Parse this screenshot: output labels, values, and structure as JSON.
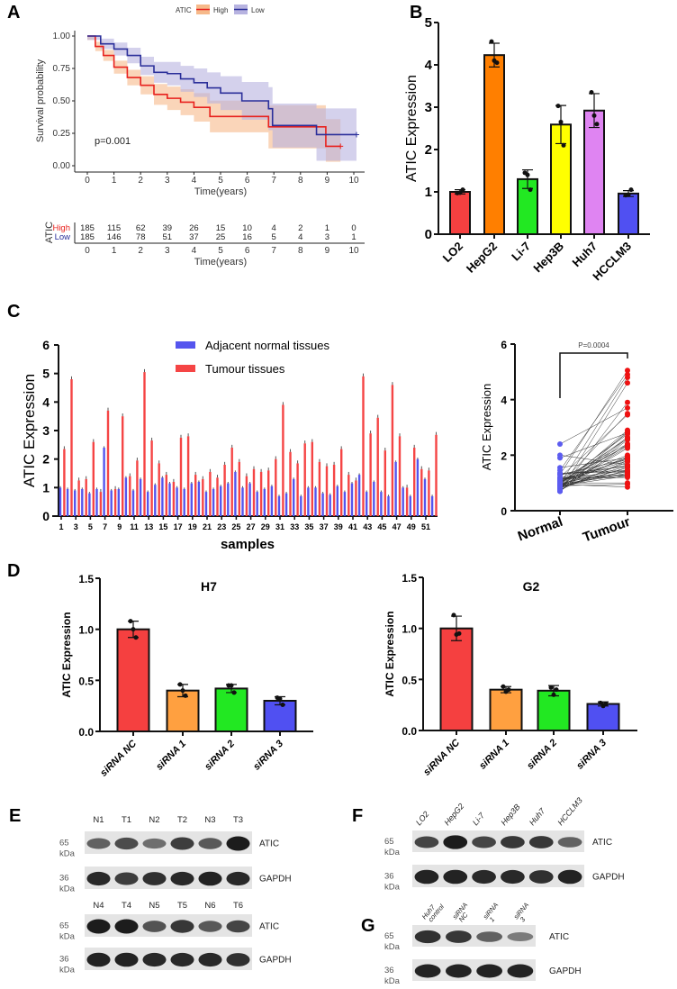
{
  "panel_labels": [
    "A",
    "B",
    "C",
    "D",
    "E",
    "F",
    "G"
  ],
  "chart_data": [
    {
      "id": "A",
      "type": "line",
      "title": "",
      "xlabel": "Time(years)",
      "ylabel": "Survival probability",
      "xlim": [
        0,
        10
      ],
      "ylim": [
        0,
        1
      ],
      "xticks": [
        0,
        1,
        2,
        3,
        4,
        5,
        6,
        7,
        8,
        9,
        10
      ],
      "yticks": [
        "0.00",
        "0.25",
        "0.50",
        "0.75",
        "1.00"
      ],
      "legend_title": "ATIC",
      "legend_position": "top",
      "annotation": "p=0.001",
      "series": [
        {
          "name": "High",
          "color": "#e8211d",
          "band": "#f6b98a",
          "steps": [
            [
              0,
              1
            ],
            [
              0.3,
              0.92
            ],
            [
              0.6,
              0.85
            ],
            [
              1,
              0.76
            ],
            [
              1.5,
              0.68
            ],
            [
              2,
              0.62
            ],
            [
              2.5,
              0.55
            ],
            [
              3,
              0.52
            ],
            [
              3.5,
              0.49
            ],
            [
              4,
              0.45
            ],
            [
              4.6,
              0.38
            ],
            [
              6.8,
              0.3
            ],
            [
              8.95,
              0.15
            ],
            [
              9.5,
              0.15
            ]
          ]
        },
        {
          "name": "Low",
          "color": "#2b2f9a",
          "band": "#b7b3e0",
          "steps": [
            [
              0,
              1
            ],
            [
              0.5,
              0.94
            ],
            [
              1,
              0.9
            ],
            [
              1.5,
              0.85
            ],
            [
              2,
              0.77
            ],
            [
              2.5,
              0.72
            ],
            [
              3,
              0.71
            ],
            [
              3.5,
              0.67
            ],
            [
              4,
              0.64
            ],
            [
              4.5,
              0.6
            ],
            [
              5,
              0.56
            ],
            [
              5.8,
              0.5
            ],
            [
              6.8,
              0.44
            ],
            [
              6.95,
              0.31
            ],
            [
              8.6,
              0.24
            ],
            [
              10.1,
              0.24
            ]
          ]
        }
      ],
      "risk_table": {
        "title": "ATIC",
        "xlabel": "Time(years)",
        "rows": [
          {
            "name": "High",
            "values": [
              185,
              115,
              62,
              39,
              26,
              15,
              10,
              4,
              2,
              1,
              0
            ]
          },
          {
            "name": "Low",
            "values": [
              185,
              146,
              78,
              51,
              37,
              25,
              16,
              5,
              4,
              3,
              1
            ]
          }
        ]
      }
    },
    {
      "id": "B",
      "type": "bar",
      "ylabel": "ATIC Expression",
      "ylim": [
        0,
        5
      ],
      "yticks": [
        "0",
        "1",
        "2",
        "3",
        "4",
        "5"
      ],
      "categories": [
        "LO2",
        "HepG2",
        "Li-7",
        "Hep3B",
        "Huh7",
        "HCCLM3"
      ],
      "values": [
        1.0,
        4.23,
        1.3,
        2.59,
        2.92,
        0.96
      ],
      "sd": [
        0.05,
        0.28,
        0.22,
        0.45,
        0.4,
        0.07
      ],
      "points": [
        [
          0.97,
          0.98,
          1.05
        ],
        [
          4.55,
          4.1,
          4.05
        ],
        [
          1.45,
          1.4,
          1.05
        ],
        [
          3.03,
          2.65,
          2.1
        ],
        [
          3.35,
          2.8,
          2.6
        ],
        [
          0.92,
          0.93,
          1.05
        ]
      ],
      "colors": [
        "#f54040",
        "#ff7f00",
        "#22e822",
        "#ffff00",
        "#df84f2",
        "#5050f2"
      ]
    },
    {
      "id": "C-left",
      "type": "bar",
      "xlabel": "samples",
      "ylabel": "ATIC Expression",
      "ylim": [
        0,
        6
      ],
      "yticks": [
        "0",
        "1",
        "2",
        "3",
        "4",
        "5",
        "6"
      ],
      "legend_position": "top-center",
      "xticks": [
        "1",
        "3",
        "5",
        "7",
        "9",
        "11",
        "13",
        "15",
        "17",
        "19",
        "21",
        "23",
        "25",
        "27",
        "29",
        "31",
        "33",
        "35",
        "37",
        "39",
        "41",
        "43",
        "45",
        "47",
        "49",
        "51"
      ],
      "series": [
        {
          "name": "Adjacent normal tissues",
          "color": "#5555ee",
          "values": [
            1.0,
            0.95,
            0.9,
            0.95,
            0.8,
            0.95,
            2.4,
            0.9,
            0.95,
            1.35,
            0.9,
            1.3,
            0.85,
            1.1,
            1.35,
            1.15,
            1.0,
            0.95,
            1.15,
            1.2,
            0.85,
            0.95,
            1.05,
            1.15,
            1.55,
            1.0,
            1.15,
            0.85,
            0.95,
            1.05,
            0.7,
            0.8,
            1.3,
            0.7,
            1.0,
            1.0,
            0.8,
            0.75,
            1.05,
            0.85,
            1.15,
            1.45,
            0.85,
            1.2,
            0.85,
            0.7,
            1.9,
            1.0,
            0.7,
            2.0,
            1.3,
            0.7
          ]
        },
        {
          "name": "Tumour tissues",
          "color": "#f54545",
          "values": [
            2.35,
            4.8,
            1.25,
            1.3,
            2.6,
            0.85,
            3.7,
            0.95,
            3.5,
            1.4,
            1.95,
            5.05,
            2.65,
            1.85,
            1.45,
            1.2,
            2.75,
            2.8,
            1.45,
            1.3,
            1.55,
            1.35,
            1.8,
            2.4,
            1.9,
            1.4,
            1.65,
            1.55,
            1.6,
            2.0,
            3.9,
            2.25,
            1.85,
            2.55,
            2.6,
            1.9,
            1.75,
            1.8,
            2.35,
            1.45,
            1.25,
            4.9,
            2.9,
            3.45,
            2.3,
            4.6,
            2.8,
            1.0,
            2.4,
            1.65,
            1.6,
            2.85
          ]
        }
      ]
    },
    {
      "id": "C-right",
      "type": "scatter",
      "ylabel": "ATIC Expression",
      "ylim": [
        0,
        6
      ],
      "yticks": [
        "0",
        "2",
        "4",
        "6"
      ],
      "categories": [
        "Normal",
        "Tumour"
      ],
      "annotation": "P=0.0004",
      "colors": [
        "#5c5cf0",
        "#ee1111"
      ],
      "paired": true,
      "note": "paired points use the same values as C-left"
    },
    {
      "id": "D-H7",
      "type": "bar",
      "title": "H7",
      "ylabel": "ATIC Expression",
      "ylim": [
        0,
        1.5
      ],
      "yticks": [
        "0.0",
        "0.5",
        "1.0",
        "1.5"
      ],
      "categories": [
        "siRNA NC",
        "siRNA 1",
        "siRNA 2",
        "siRNA 3"
      ],
      "values": [
        1.0,
        0.4,
        0.42,
        0.3
      ],
      "sd": [
        0.08,
        0.06,
        0.04,
        0.04
      ],
      "points": [
        [
          1.08,
          1.0,
          0.92
        ],
        [
          0.46,
          0.4,
          0.35
        ],
        [
          0.45,
          0.45,
          0.38
        ],
        [
          0.33,
          0.32,
          0.26
        ]
      ],
      "colors": [
        "#f54040",
        "#ffa040",
        "#22e822",
        "#5050f2"
      ]
    },
    {
      "id": "D-G2",
      "type": "bar",
      "title": "G2",
      "ylabel": "ATIC Expression",
      "ylim": [
        0,
        1.5
      ],
      "yticks": [
        "0.0",
        "0.5",
        "1.0",
        "1.5"
      ],
      "categories": [
        "siRNA NC",
        "siRNA 1",
        "siRNA 2",
        "siRNA 3"
      ],
      "values": [
        1.0,
        0.4,
        0.39,
        0.26
      ],
      "sd": [
        0.12,
        0.03,
        0.05,
        0.02
      ],
      "points": [
        [
          1.13,
          0.94,
          0.95
        ],
        [
          0.43,
          0.38,
          0.4
        ],
        [
          0.42,
          0.35,
          0.4
        ],
        [
          0.27,
          0.24,
          0.26
        ]
      ],
      "colors": [
        "#f54040",
        "#ffa040",
        "#22e822",
        "#5050f2"
      ]
    }
  ],
  "blots": {
    "E": {
      "groups": [
        {
          "lanes": [
            "N1",
            "T1",
            "N2",
            "T2",
            "N3",
            "T3"
          ],
          "rows": [
            {
              "protein": "ATIC",
              "mw": "65",
              "unit": "kDa",
              "intensity": [
                0.5,
                0.65,
                0.4,
                0.75,
                0.55,
                1.0
              ]
            },
            {
              "protein": "GAPDH",
              "mw": "36",
              "unit": "kDa",
              "intensity": [
                0.9,
                0.75,
                0.85,
                0.9,
                0.95,
                0.9
              ]
            }
          ]
        },
        {
          "lanes": [
            "N4",
            "T4",
            "N5",
            "T5",
            "N6",
            "T6"
          ],
          "rows": [
            {
              "protein": "ATIC",
              "mw": "65",
              "unit": "kDa",
              "intensity": [
                1.0,
                1.0,
                0.6,
                0.8,
                0.55,
                0.7
              ]
            },
            {
              "protein": "GAPDH",
              "mw": "36",
              "unit": "kDa",
              "intensity": [
                0.95,
                0.95,
                0.9,
                0.9,
                0.9,
                0.85
              ]
            }
          ]
        }
      ]
    },
    "F": {
      "lanes": [
        "LO2",
        "HepG2",
        "Li-7",
        "Hep3B",
        "Huh7",
        "HCCLM3"
      ],
      "rows": [
        {
          "protein": "ATIC",
          "mw": "65",
          "unit": "kDa",
          "intensity": [
            0.7,
            1.0,
            0.7,
            0.8,
            0.8,
            0.5
          ]
        },
        {
          "protein": "GAPDH",
          "mw": "36",
          "unit": "kDa",
          "intensity": [
            0.95,
            0.95,
            0.9,
            0.9,
            0.85,
            0.95
          ]
        }
      ]
    },
    "G": {
      "lanes": [
        "Huh7 control",
        "siRNA NC",
        "siRNA 1",
        "siRNA 3"
      ],
      "rows": [
        {
          "protein": "ATIC",
          "mw": "65",
          "unit": "kDa",
          "intensity": [
            0.85,
            0.8,
            0.5,
            0.3
          ]
        },
        {
          "protein": "GAPDH",
          "mw": "36",
          "unit": "kDa",
          "intensity": [
            0.95,
            0.95,
            0.95,
            0.95
          ]
        }
      ]
    }
  }
}
